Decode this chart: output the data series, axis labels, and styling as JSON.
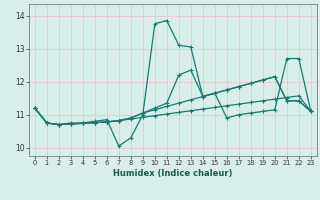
{
  "xlabel": "Humidex (Indice chaleur)",
  "xlim": [
    -0.5,
    23.5
  ],
  "ylim": [
    9.75,
    14.35
  ],
  "xticks": [
    0,
    1,
    2,
    3,
    4,
    5,
    6,
    7,
    8,
    9,
    10,
    11,
    12,
    13,
    14,
    15,
    16,
    17,
    18,
    19,
    20,
    21,
    22,
    23
  ],
  "yticks": [
    10,
    11,
    12,
    13,
    14
  ],
  "bg_color": "#d8eeea",
  "grid_color_h": "#e8c8c8",
  "grid_color_v": "#e8c8c8",
  "line_color": "#1a7a6e",
  "line1_y": [
    11.2,
    10.75,
    10.7,
    10.75,
    10.75,
    10.8,
    10.85,
    10.05,
    10.3,
    11.0,
    13.75,
    13.85,
    13.1,
    13.05,
    11.55,
    11.65,
    10.9,
    11.0,
    11.05,
    11.1,
    11.15,
    12.7,
    12.7,
    11.1
  ],
  "line2_y": [
    11.2,
    10.75,
    10.7,
    10.72,
    10.74,
    10.76,
    10.78,
    10.82,
    10.87,
    10.92,
    10.97,
    11.02,
    11.07,
    11.12,
    11.17,
    11.22,
    11.27,
    11.32,
    11.37,
    11.42,
    11.47,
    11.52,
    11.57,
    11.1
  ],
  "line3_y": [
    11.2,
    10.75,
    10.7,
    10.72,
    10.74,
    10.76,
    10.78,
    10.82,
    10.9,
    11.05,
    11.15,
    11.25,
    11.35,
    11.45,
    11.55,
    11.65,
    11.75,
    11.85,
    11.95,
    12.05,
    12.15,
    11.42,
    11.42,
    11.1
  ],
  "line4_y": [
    11.2,
    10.75,
    10.7,
    10.72,
    10.74,
    10.76,
    10.78,
    10.82,
    10.9,
    11.05,
    11.2,
    11.35,
    12.2,
    12.35,
    11.55,
    11.65,
    11.75,
    11.85,
    11.95,
    12.05,
    12.15,
    11.42,
    11.42,
    11.1
  ]
}
